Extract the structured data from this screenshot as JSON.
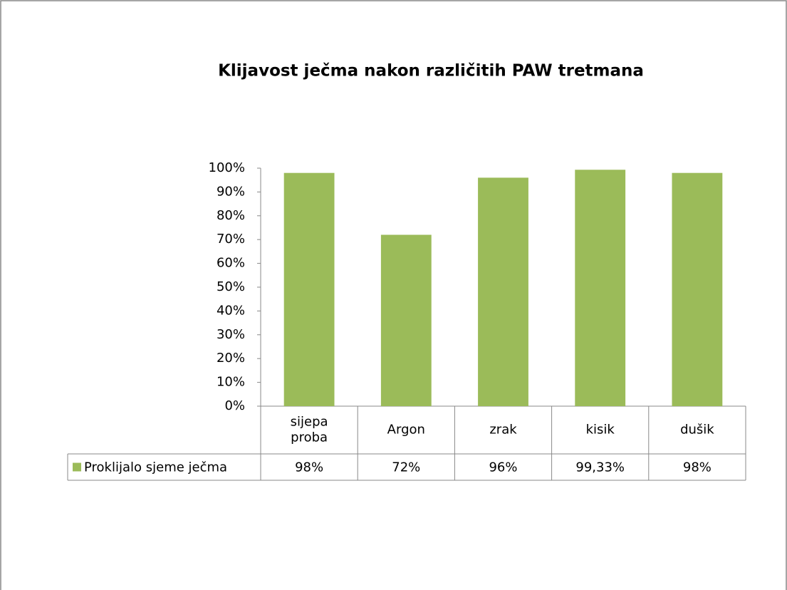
{
  "chart_data": {
    "type": "bar",
    "title": "Klijavost ječma nakon različitih PAW tretmana",
    "categories": [
      "sijepa proba",
      "Argon",
      "zrak",
      "kisik",
      "dušik"
    ],
    "series": [
      {
        "name": "Proklijalo sjeme ječma",
        "color": "#9bbb59",
        "values": [
          98,
          72,
          96,
          99.33,
          98
        ],
        "value_labels": [
          "98%",
          "72%",
          "96%",
          "99,33%",
          "98%"
        ]
      }
    ],
    "ylim": [
      0,
      100
    ],
    "yticks": [
      {
        "value": 0,
        "label": "0%"
      },
      {
        "value": 10,
        "label": "10%"
      },
      {
        "value": 20,
        "label": "20%"
      },
      {
        "value": 30,
        "label": "30%"
      },
      {
        "value": 40,
        "label": "40%"
      },
      {
        "value": 50,
        "label": "50%"
      },
      {
        "value": 60,
        "label": "60%"
      },
      {
        "value": 70,
        "label": "70%"
      },
      {
        "value": 80,
        "label": "80%"
      },
      {
        "value": 90,
        "label": "90%"
      },
      {
        "value": 100,
        "label": "100%"
      }
    ],
    "grid": false
  }
}
